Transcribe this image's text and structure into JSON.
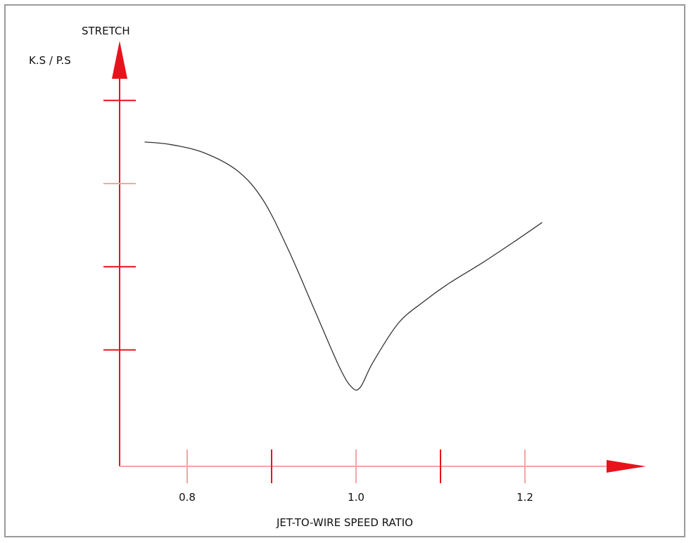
{
  "chart_data": {
    "type": "line",
    "ylabel_line1": "STRETCH",
    "ylabel_line2": "K.S / P.S",
    "xlabel": "JET-TO-WIRE SPEED RATIO",
    "xlim": [
      0.72,
      1.32
    ],
    "ylim": [
      0,
      5.1
    ],
    "x_ticks": [
      {
        "value": 0.8,
        "label": "0.8",
        "style": "light"
      },
      {
        "value": 0.9,
        "label": "",
        "style": "major"
      },
      {
        "value": 1.0,
        "label": "1.0",
        "style": "light"
      },
      {
        "value": 1.1,
        "label": "",
        "style": "major"
      },
      {
        "value": 1.2,
        "label": "1.2",
        "style": "light"
      }
    ],
    "y_ticks": [
      {
        "value": 1.4,
        "style": "major"
      },
      {
        "value": 2.4,
        "style": "major"
      },
      {
        "value": 3.4,
        "style": "light"
      },
      {
        "value": 4.4,
        "style": "major"
      }
    ],
    "grid": false,
    "series": [
      {
        "values": [
          [
            0.75,
            3.9
          ],
          [
            0.78,
            3.87
          ],
          [
            0.82,
            3.77
          ],
          [
            0.86,
            3.55
          ],
          [
            0.89,
            3.2
          ],
          [
            0.92,
            2.6
          ],
          [
            0.95,
            1.9
          ],
          [
            0.98,
            1.2
          ],
          [
            0.995,
            0.95
          ],
          [
            1.005,
            0.95
          ],
          [
            1.02,
            1.25
          ],
          [
            1.05,
            1.72
          ],
          [
            1.08,
            1.98
          ],
          [
            1.11,
            2.2
          ],
          [
            1.15,
            2.45
          ],
          [
            1.19,
            2.72
          ],
          [
            1.22,
            2.93
          ]
        ]
      }
    ],
    "colors": {
      "axis": "#e8121c",
      "axis_light": "#f2a6a6",
      "curve": "#333333"
    }
  }
}
